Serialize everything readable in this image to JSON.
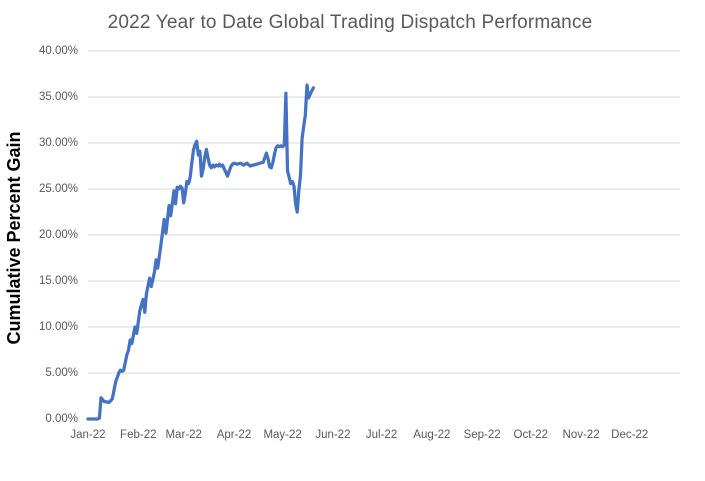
{
  "chart_data": {
    "type": "line",
    "title": "2022 Year to Date Global Trading Dispatch Performance",
    "xlabel": "",
    "ylabel": "Cumulative Percent Gain",
    "ylim": [
      0,
      40
    ],
    "x_domain_days": [
      1,
      366
    ],
    "grid": "horizontal-only",
    "legend": "none",
    "line_color": "#4472C4",
    "gridline_color": "#D9D9D9",
    "tick_label_color": "#595959",
    "title_color": "#595959",
    "y_ticks": [
      {
        "label": "0.00%",
        "value": 0
      },
      {
        "label": "5.00%",
        "value": 5
      },
      {
        "label": "10.00%",
        "value": 10
      },
      {
        "label": "15.00%",
        "value": 15
      },
      {
        "label": "20.00%",
        "value": 20
      },
      {
        "label": "25.00%",
        "value": 25
      },
      {
        "label": "30.00%",
        "value": 30
      },
      {
        "label": "35.00%",
        "value": 35
      },
      {
        "label": "40.00%",
        "value": 40
      }
    ],
    "x_ticks": [
      {
        "label": "Jan-22",
        "day": 1
      },
      {
        "label": "Feb-22",
        "day": 32
      },
      {
        "label": "Mar-22",
        "day": 60
      },
      {
        "label": "Apr-22",
        "day": 91
      },
      {
        "label": "May-22",
        "day": 121
      },
      {
        "label": "Jun-22",
        "day": 152
      },
      {
        "label": "Jul-22",
        "day": 182
      },
      {
        "label": "Aug-22",
        "day": 213
      },
      {
        "label": "Sep-22",
        "day": 244
      },
      {
        "label": "Oct-22",
        "day": 274
      },
      {
        "label": "Nov-22",
        "day": 305
      },
      {
        "label": "Dec-22",
        "day": 335
      }
    ],
    "series": [
      {
        "name": "Cumulative Percent Gain",
        "points_format": [
          "day_of_year_2022",
          "percent_gain"
        ],
        "points": [
          [
            1,
            0
          ],
          [
            4,
            0
          ],
          [
            7,
            0
          ],
          [
            8,
            0.1
          ],
          [
            9,
            2.3
          ],
          [
            11,
            1.9
          ],
          [
            14,
            1.8
          ],
          [
            16,
            2.2
          ],
          [
            18,
            4.0
          ],
          [
            20,
            5.0
          ],
          [
            21,
            5.3
          ],
          [
            22,
            5.2
          ],
          [
            23,
            5.3
          ],
          [
            25,
            7.0
          ],
          [
            26,
            7.5
          ],
          [
            27,
            8.6
          ],
          [
            28,
            8.2
          ],
          [
            30,
            10.0
          ],
          [
            31,
            9.3
          ],
          [
            33,
            11.8
          ],
          [
            35,
            13.0
          ],
          [
            36,
            11.6
          ],
          [
            37,
            13.6
          ],
          [
            39,
            15.3
          ],
          [
            40,
            14.4
          ],
          [
            42,
            16.0
          ],
          [
            43,
            17.3
          ],
          [
            44,
            16.4
          ],
          [
            46,
            19.0
          ],
          [
            48,
            21.7
          ],
          [
            49,
            20.2
          ],
          [
            51,
            23.2
          ],
          [
            52,
            22.1
          ],
          [
            54,
            24.8
          ],
          [
            55,
            23.4
          ],
          [
            56,
            25.2
          ],
          [
            57,
            25.0
          ],
          [
            58,
            25.3
          ],
          [
            59,
            25.1
          ],
          [
            60,
            23.5
          ],
          [
            61,
            24.5
          ],
          [
            62,
            25.8
          ],
          [
            63,
            25.6
          ],
          [
            64,
            26.3
          ],
          [
            65,
            27.8
          ],
          [
            66,
            29.2
          ],
          [
            67,
            29.8
          ],
          [
            68,
            30.2
          ],
          [
            69,
            28.7
          ],
          [
            70,
            29.1
          ],
          [
            71,
            26.4
          ],
          [
            72,
            27.2
          ],
          [
            73,
            28.5
          ],
          [
            74,
            29.3
          ],
          [
            75,
            28.4
          ],
          [
            76,
            27.6
          ],
          [
            77,
            27.3
          ],
          [
            78,
            27.6
          ],
          [
            79,
            27.4
          ],
          [
            80,
            27.6
          ],
          [
            81,
            27.5
          ],
          [
            82,
            27.7
          ],
          [
            83,
            27.5
          ],
          [
            84,
            27.6
          ],
          [
            85,
            27.2
          ],
          [
            86,
            26.8
          ],
          [
            87,
            26.4
          ],
          [
            88,
            26.9
          ],
          [
            89,
            27.4
          ],
          [
            90,
            27.7
          ],
          [
            91,
            27.8
          ],
          [
            93,
            27.7
          ],
          [
            95,
            27.8
          ],
          [
            97,
            27.6
          ],
          [
            99,
            27.8
          ],
          [
            101,
            27.5
          ],
          [
            103,
            27.6
          ],
          [
            105,
            27.7
          ],
          [
            107,
            27.8
          ],
          [
            109,
            27.9
          ],
          [
            111,
            28.9
          ],
          [
            112,
            28.3
          ],
          [
            113,
            27.4
          ],
          [
            114,
            27.3
          ],
          [
            115,
            27.9
          ],
          [
            116,
            28.8
          ],
          [
            117,
            29.5
          ],
          [
            118,
            29.7
          ],
          [
            119,
            29.6
          ],
          [
            120,
            29.7
          ],
          [
            121,
            29.6
          ],
          [
            122,
            29.8
          ],
          [
            123,
            35.4
          ],
          [
            124,
            27.0
          ],
          [
            125,
            26.3
          ],
          [
            126,
            25.6
          ],
          [
            127,
            25.8
          ],
          [
            128,
            25.3
          ],
          [
            129,
            23.4
          ],
          [
            130,
            22.5
          ],
          [
            131,
            24.8
          ],
          [
            132,
            26.5
          ],
          [
            133,
            30.5
          ],
          [
            134,
            31.8
          ],
          [
            135,
            33.0
          ],
          [
            136,
            36.3
          ],
          [
            137,
            34.9
          ],
          [
            138,
            35.3
          ],
          [
            140,
            36.0
          ]
        ]
      }
    ]
  }
}
